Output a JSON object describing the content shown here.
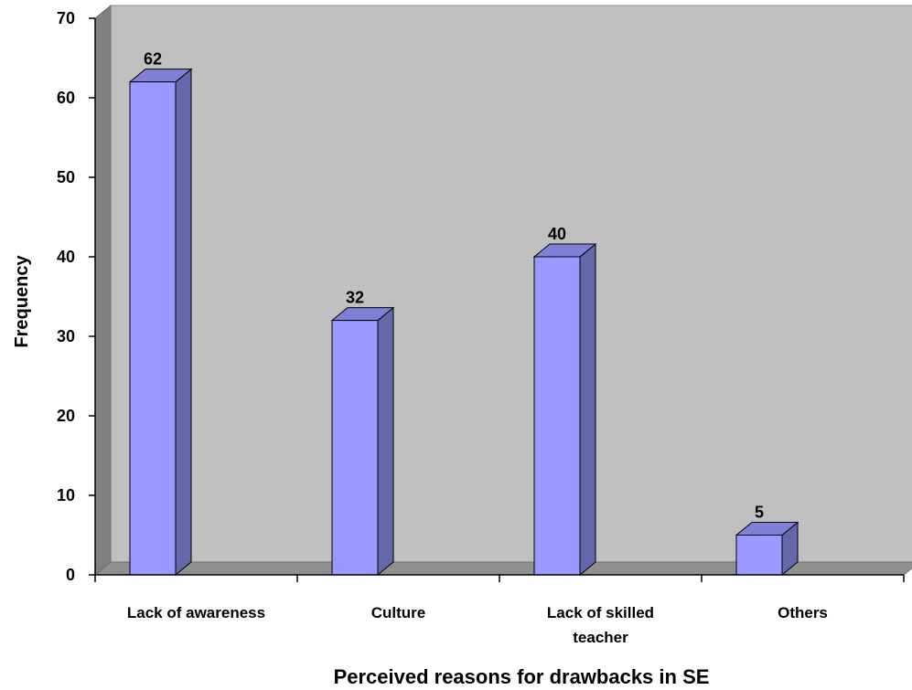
{
  "chart_data": {
    "type": "bar",
    "title": "",
    "xlabel": "Perceived reasons for drawbacks in SE",
    "ylabel": "Frequency",
    "ylim": [
      0,
      70
    ],
    "yticks": [
      0,
      10,
      20,
      30,
      40,
      50,
      60,
      70
    ],
    "categories": [
      [
        "Lack of awareness"
      ],
      [
        "Culture"
      ],
      [
        "Lack of skilled",
        "teacher"
      ],
      [
        "Others"
      ]
    ],
    "values": [
      62,
      32,
      40,
      5
    ],
    "grid": false,
    "legend": "none",
    "colors": {
      "bar_front": "#9999ff",
      "bar_side": "#6666aa",
      "bar_top": "#8080d8",
      "wall": "#c0c0c0",
      "wall_side": "#808080",
      "floor": "#909090"
    }
  }
}
